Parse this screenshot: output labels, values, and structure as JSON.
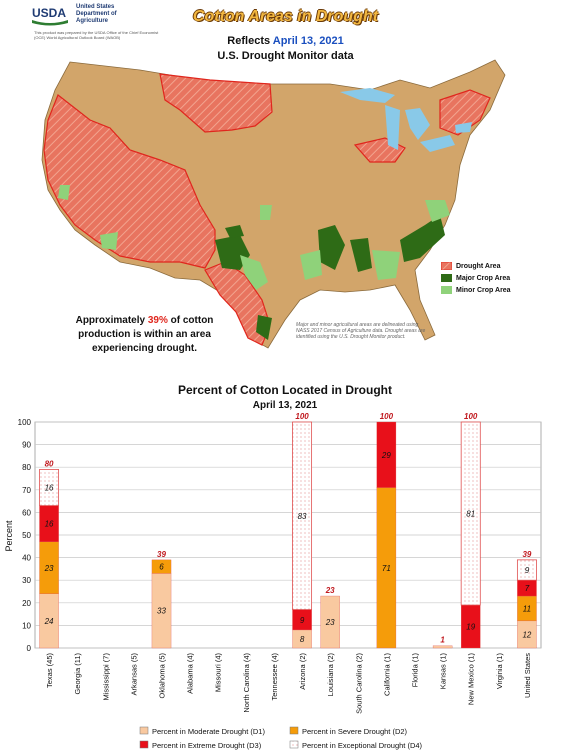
{
  "header": {
    "org_line1": "United States",
    "org_line2": "Department of",
    "org_line3": "Agriculture",
    "logo_text": "USDA",
    "prepared_note": "This product was prepared by the USDA Office of the Chief Economist (OCE) World Agricultural Outlook Board (WAOB)"
  },
  "map": {
    "title": "Cotton Areas in Drought",
    "reflects_label": "Reflects",
    "reflects_date": "April 13, 2021",
    "subtitle": "U.S. Drought Monitor data",
    "legend": [
      {
        "label": "Drought Area",
        "color": "#ef8a7a"
      },
      {
        "label": "Major Crop Area",
        "color": "#2e6b16"
      },
      {
        "label": "Minor Crop Area",
        "color": "#8fd27a"
      }
    ],
    "note_prefix": "Approximately",
    "note_pct": "39%",
    "note_suffix": "of cotton production is within an area experiencing drought.",
    "fine_print": "Major and minor agricultural areas are delineated using NASS 2017 Census of Agriculture data. Drought areas are identified using the U.S. Drought Monitor product.",
    "colors": {
      "land": "#d2a56a",
      "water": "#89c9e8",
      "drought": "#e8745f",
      "border": "#e0261d"
    }
  },
  "chart_data": {
    "type": "bar",
    "stacked": true,
    "title": "Percent of Cotton Located in Drought",
    "subtitle": "April 13, 2021",
    "ylabel": "Percent",
    "ylim": [
      0,
      100
    ],
    "yticks": [
      0,
      10,
      20,
      30,
      40,
      50,
      60,
      70,
      80,
      90,
      100
    ],
    "grid": true,
    "categories": [
      "Texas (45)",
      "Georgia (11)",
      "Mississippi (7)",
      "Arkansas (5)",
      "Oklahoma (5)",
      "Alabama (4)",
      "Missouri (4)",
      "North Carolina (4)",
      "Tennessee (4)",
      "Arizona (2)",
      "Louisiana (2)",
      "South Carolina (2)",
      "California (1)",
      "Florida (1)",
      "Kansas (1)",
      "New Mexico (1)",
      "Virginia (1)",
      "United States"
    ],
    "series": [
      {
        "name": "Percent in Moderate Drought (D1)",
        "color": "#f9c9a0",
        "values": [
          24,
          0,
          0,
          0,
          33,
          0,
          0,
          0,
          0,
          8,
          23,
          0,
          0,
          0,
          1,
          0,
          0,
          12
        ]
      },
      {
        "name": "Percent in Severe Drought (D2)",
        "color": "#f59c0a",
        "values": [
          23,
          0,
          0,
          0,
          6,
          0,
          0,
          0,
          0,
          0,
          0,
          0,
          71,
          0,
          0,
          0,
          0,
          11
        ]
      },
      {
        "name": "Percent in Extreme Drought (D3)",
        "color": "#e8101a",
        "values": [
          16,
          0,
          0,
          0,
          0,
          0,
          0,
          0,
          0,
          9,
          0,
          0,
          29,
          0,
          0,
          19,
          0,
          7
        ]
      },
      {
        "name": "Percent in Exceptional Drought (D4)",
        "color": "#ffffff",
        "values": [
          16,
          0,
          0,
          0,
          0,
          0,
          0,
          0,
          0,
          83,
          0,
          0,
          0,
          0,
          0,
          81,
          0,
          9
        ]
      }
    ],
    "segment_labels": [
      [
        "24",
        "",
        "",
        "",
        "33",
        "",
        "",
        "",
        "",
        "8",
        "23",
        "",
        "",
        "",
        "",
        "",
        "",
        "12"
      ],
      [
        "23",
        "",
        "",
        "",
        "6",
        "",
        "",
        "",
        "",
        "",
        "",
        "",
        "71",
        "",
        "",
        "",
        "",
        "11"
      ],
      [
        "16",
        "",
        "",
        "",
        "",
        "",
        "",
        "",
        "",
        "9",
        "",
        "",
        "29",
        "",
        "",
        "19",
        "",
        "7"
      ],
      [
        "16",
        "",
        "",
        "",
        "",
        "",
        "",
        "",
        "",
        "83",
        "",
        "",
        "",
        "",
        "",
        "81",
        "",
        "9"
      ]
    ],
    "totals": [
      "80",
      "",
      "",
      "",
      "39",
      "",
      "",
      "",
      "",
      "100",
      "23",
      "",
      "100",
      "",
      "1",
      "100",
      "",
      "39"
    ]
  }
}
